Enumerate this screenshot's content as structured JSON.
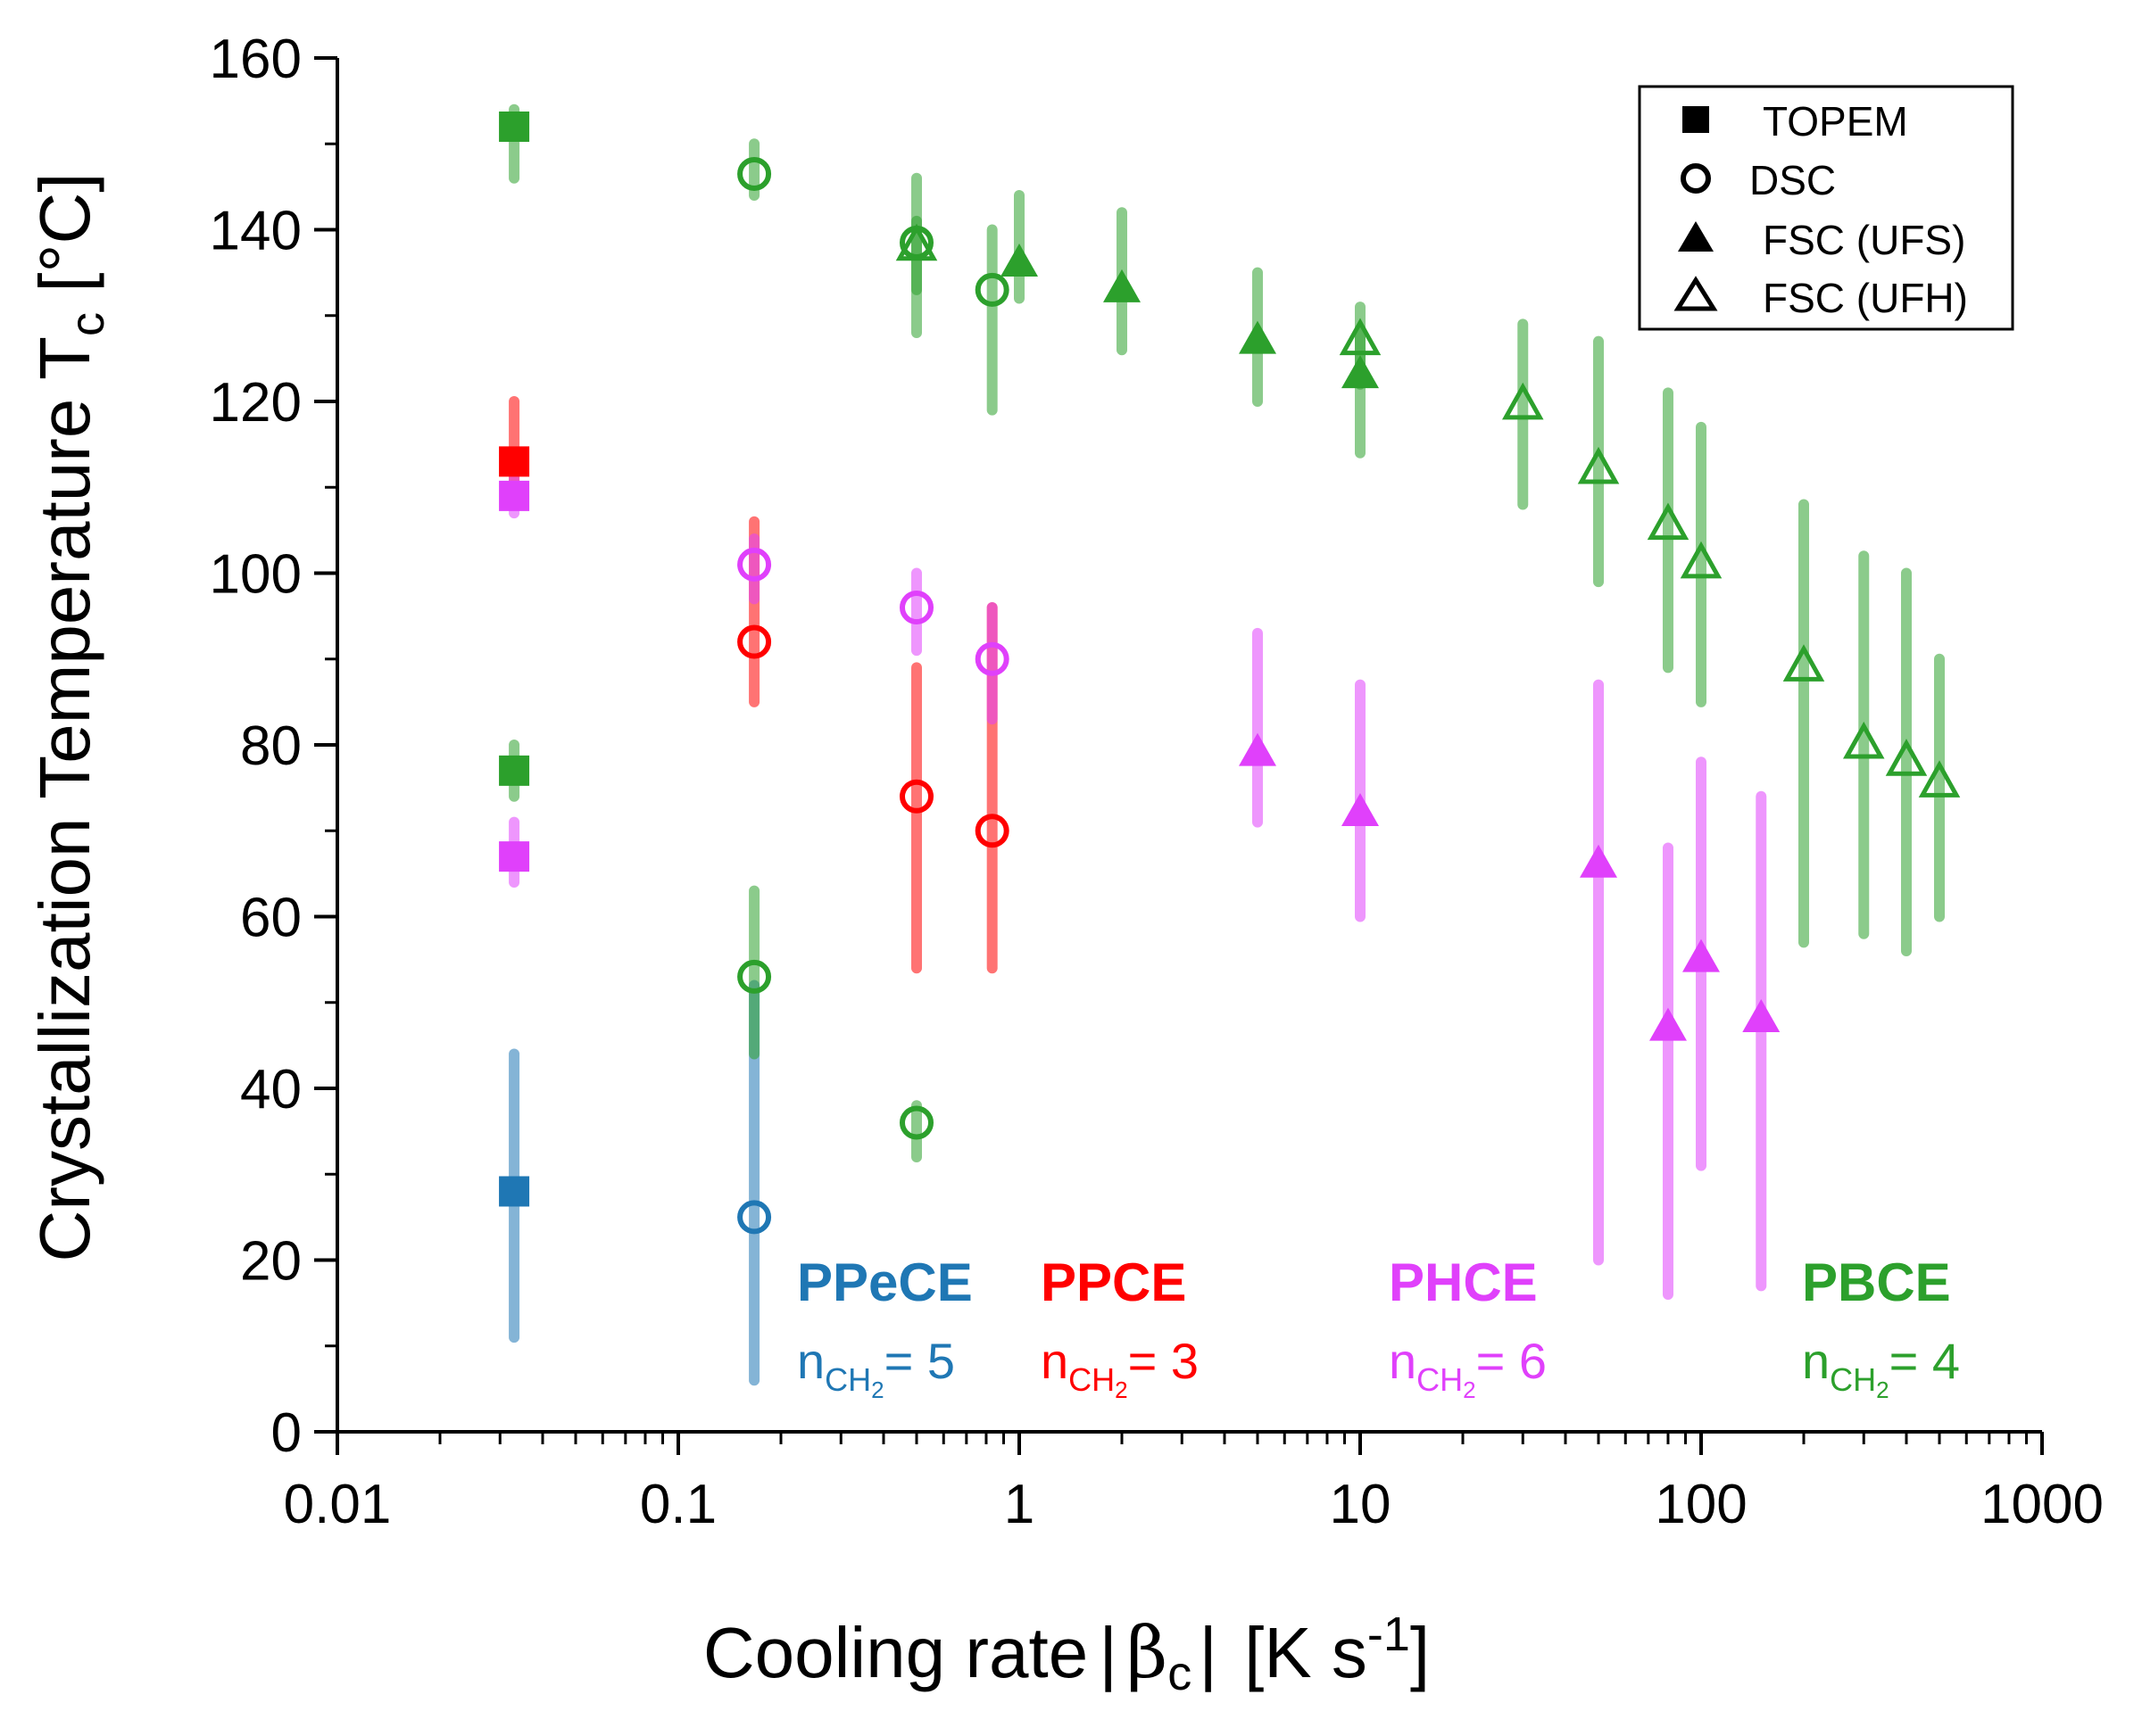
{
  "chart_data": {
    "type": "scatter",
    "xscale": "log",
    "xlim": [
      0.01,
      1000
    ],
    "ylim": [
      0,
      160
    ],
    "x_ticks": [
      {
        "value": 0.01,
        "label": "0.01"
      },
      {
        "value": 0.1,
        "label": "0.1"
      },
      {
        "value": 1,
        "label": "1"
      },
      {
        "value": 10,
        "label": "10"
      },
      {
        "value": 100,
        "label": "100"
      },
      {
        "value": 1000,
        "label": "1000"
      }
    ],
    "y_ticks": [
      {
        "value": 0,
        "label": "0"
      },
      {
        "value": 20,
        "label": "20"
      },
      {
        "value": 40,
        "label": "40"
      },
      {
        "value": 60,
        "label": "60"
      },
      {
        "value": 80,
        "label": "80"
      },
      {
        "value": 100,
        "label": "100"
      },
      {
        "value": 120,
        "label": "120"
      },
      {
        "value": 140,
        "label": "140"
      },
      {
        "value": 160,
        "label": "160"
      }
    ],
    "xlabel": {
      "main": "Cooling rate",
      "beta": "β",
      "sub": "c",
      "unit": "[K s",
      "sup": "-1",
      "close": "]"
    },
    "ylabel": {
      "main": "Crystallization Temperature T",
      "sub": "c",
      "unit": " [°C]"
    },
    "legend": [
      {
        "marker": "square",
        "label": "TOPEM"
      },
      {
        "marker": "circle",
        "label": "DSC"
      },
      {
        "marker": "triangle",
        "label": "FSC (UFS)"
      },
      {
        "marker": "triangle-open",
        "label": "FSC (UFH)"
      }
    ],
    "series": [
      {
        "name": "PPeCE",
        "n_label": "n",
        "n_sub": "CH",
        "n_sub2": "2",
        "n_value": "= 5",
        "color": "#1f77b4",
        "points": [
          {
            "method": "TOPEM",
            "marker": "square",
            "x": 0.033,
            "y": 28,
            "ymin": 11,
            "ymax": 44
          },
          {
            "method": "DSC",
            "marker": "circle",
            "x": 0.167,
            "y": 25,
            "ymin": 6,
            "ymax": 52
          }
        ]
      },
      {
        "name": "PPCE",
        "n_label": "n",
        "n_sub": "CH",
        "n_sub2": "2",
        "n_value": "= 3",
        "color": "#ff0000",
        "points": [
          {
            "method": "TOPEM",
            "marker": "square",
            "x": 0.033,
            "y": 113,
            "ymin": 109,
            "ymax": 120
          },
          {
            "method": "DSC",
            "marker": "circle",
            "x": 0.167,
            "y": 92,
            "ymin": 85,
            "ymax": 106
          },
          {
            "method": "DSC",
            "marker": "circle",
            "x": 0.5,
            "y": 74,
            "ymin": 54,
            "ymax": 89
          },
          {
            "method": "DSC",
            "marker": "circle",
            "x": 0.833,
            "y": 70,
            "ymin": 54,
            "ymax": 96
          }
        ]
      },
      {
        "name": "PHCE",
        "n_label": "n",
        "n_sub": "CH",
        "n_sub2": "2",
        "n_value": "= 6",
        "color": "#e040fb",
        "points": [
          {
            "method": "TOPEM",
            "marker": "square",
            "x": 0.033,
            "y": 109,
            "ymin": 107,
            "ymax": 111
          },
          {
            "method": "TOPEM",
            "marker": "square",
            "x": 0.033,
            "y": 67,
            "ymin": 64,
            "ymax": 71
          },
          {
            "method": "DSC",
            "marker": "circle",
            "x": 0.167,
            "y": 101,
            "ymin": 97,
            "ymax": 104
          },
          {
            "method": "DSC",
            "marker": "circle",
            "x": 0.5,
            "y": 96,
            "ymin": 91,
            "ymax": 100
          },
          {
            "method": "DSC",
            "marker": "circle",
            "x": 0.833,
            "y": 90,
            "ymin": 83,
            "ymax": 96
          },
          {
            "method": "FSC (UFS)",
            "marker": "triangle",
            "x": 5,
            "y": 79,
            "ymin": 71,
            "ymax": 93
          },
          {
            "method": "FSC (UFS)",
            "marker": "triangle",
            "x": 10,
            "y": 72,
            "ymin": 60,
            "ymax": 87
          },
          {
            "method": "FSC (UFS)",
            "marker": "triangle",
            "x": 50,
            "y": 66,
            "ymin": 20,
            "ymax": 87
          },
          {
            "method": "FSC (UFS)",
            "marker": "triangle",
            "x": 80,
            "y": 47,
            "ymin": 16,
            "ymax": 68
          },
          {
            "method": "FSC (UFS)",
            "marker": "triangle",
            "x": 100,
            "y": 55,
            "ymin": 31,
            "ymax": 78
          },
          {
            "method": "FSC (UFS)",
            "marker": "triangle",
            "x": 150,
            "y": 48,
            "ymin": 17,
            "ymax": 74
          }
        ]
      },
      {
        "name": "PBCE",
        "n_label": "n",
        "n_sub": "CH",
        "n_sub2": "2",
        "n_value": "= 4",
        "color": "#2ca02c",
        "points": [
          {
            "method": "TOPEM",
            "marker": "square",
            "x": 0.033,
            "y": 152,
            "ymin": 146,
            "ymax": 154
          },
          {
            "method": "TOPEM",
            "marker": "square",
            "x": 0.033,
            "y": 77,
            "ymin": 74,
            "ymax": 80
          },
          {
            "method": "DSC",
            "marker": "circle",
            "x": 0.167,
            "y": 146.5,
            "ymin": 144,
            "ymax": 150
          },
          {
            "method": "DSC",
            "marker": "circle",
            "x": 0.167,
            "y": 53,
            "ymin": 44,
            "ymax": 63
          },
          {
            "method": "DSC",
            "marker": "circle",
            "x": 0.5,
            "y": 138.5,
            "ymin": 128,
            "ymax": 146
          },
          {
            "method": "DSC",
            "marker": "circle",
            "x": 0.5,
            "y": 36,
            "ymin": 32,
            "ymax": 38
          },
          {
            "method": "DSC",
            "marker": "circle",
            "x": 0.833,
            "y": 133,
            "ymin": 119,
            "ymax": 140
          },
          {
            "method": "FSC (UFH)",
            "marker": "triangle-open",
            "x": 0.5,
            "y": 138,
            "ymin": 133,
            "ymax": 141
          },
          {
            "method": "FSC (UFS)",
            "marker": "triangle",
            "x": 1,
            "y": 136,
            "ymin": 132,
            "ymax": 144
          },
          {
            "method": "FSC (UFS)",
            "marker": "triangle",
            "x": 2,
            "y": 133,
            "ymin": 126,
            "ymax": 142
          },
          {
            "method": "FSC (UFS)",
            "marker": "triangle",
            "x": 5,
            "y": 127,
            "ymin": 120,
            "ymax": 135
          },
          {
            "method": "FSC (UFS)",
            "marker": "triangle",
            "x": 10,
            "y": 123,
            "ymin": 114,
            "ymax": 128
          },
          {
            "method": "FSC (UFH)",
            "marker": "triangle-open",
            "x": 10,
            "y": 127,
            "ymin": 122,
            "ymax": 131
          },
          {
            "method": "FSC (UFH)",
            "marker": "triangle-open",
            "x": 30,
            "y": 119.5,
            "ymin": 108,
            "ymax": 129
          },
          {
            "method": "FSC (UFH)",
            "marker": "triangle-open",
            "x": 50,
            "y": 112,
            "ymin": 99,
            "ymax": 127
          },
          {
            "method": "FSC (UFH)",
            "marker": "triangle-open",
            "x": 80,
            "y": 105.5,
            "ymin": 89,
            "ymax": 121
          },
          {
            "method": "FSC (UFH)",
            "marker": "triangle-open",
            "x": 100,
            "y": 101,
            "ymin": 85,
            "ymax": 117
          },
          {
            "method": "FSC (UFH)",
            "marker": "triangle-open",
            "x": 200,
            "y": 89,
            "ymin": 57,
            "ymax": 108
          },
          {
            "method": "FSC (UFH)",
            "marker": "triangle-open",
            "x": 300,
            "y": 80,
            "ymin": 58,
            "ymax": 102
          },
          {
            "method": "FSC (UFH)",
            "marker": "triangle-open",
            "x": 400,
            "y": 78,
            "ymin": 56,
            "ymax": 100
          },
          {
            "method": "FSC (UFH)",
            "marker": "triangle-open",
            "x": 500,
            "y": 75.5,
            "ymin": 60,
            "ymax": 90
          }
        ]
      }
    ]
  }
}
